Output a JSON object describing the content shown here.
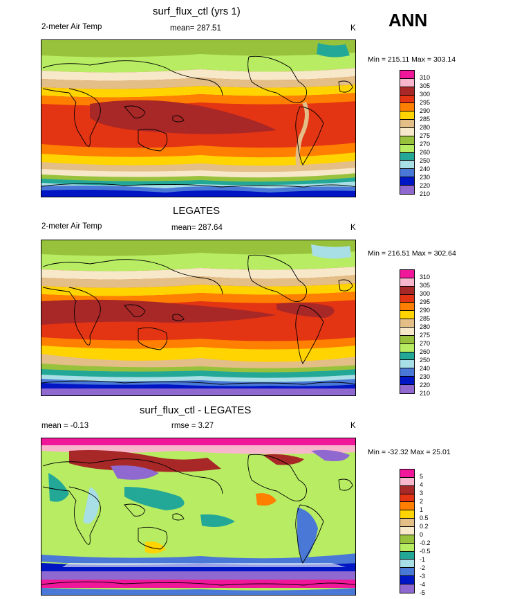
{
  "header": {
    "season": "ANN"
  },
  "panels": [
    {
      "title": "surf_flux_ctl (yrs 1)",
      "left": "2-meter Air Temp",
      "center": "mean= 287.51",
      "units": "K",
      "minmax": "Min = 215.11 Max = 303.14",
      "levels": [
        "310",
        "305",
        "300",
        "295",
        "290",
        "285",
        "280",
        "275",
        "270",
        "260",
        "250",
        "240",
        "230",
        "220",
        "210"
      ],
      "colors": [
        "#f0179a",
        "#f7b6cc",
        "#a82727",
        "#e33413",
        "#ff7f00",
        "#ffd400",
        "#e3be86",
        "#f6e8c8",
        "#99c23c",
        "#b7ec63",
        "#23a898",
        "#a8dfe6",
        "#4a78d6",
        "#0016c4",
        "#8f69cf"
      ]
    },
    {
      "title": "LEGATES",
      "left": "2-meter Air Temp",
      "center": "mean= 287.64",
      "units": "K",
      "minmax": "Min = 216.51 Max = 302.64",
      "levels": [
        "310",
        "305",
        "300",
        "295",
        "290",
        "285",
        "280",
        "275",
        "270",
        "260",
        "250",
        "240",
        "230",
        "220",
        "210"
      ],
      "colors": [
        "#f0179a",
        "#f7b6cc",
        "#a82727",
        "#e33413",
        "#ff7f00",
        "#ffd400",
        "#e3be86",
        "#f6e8c8",
        "#99c23c",
        "#b7ec63",
        "#23a898",
        "#a8dfe6",
        "#4a78d6",
        "#0016c4",
        "#8f69cf"
      ]
    },
    {
      "title": "surf_flux_ctl - LEGATES",
      "left": "mean =  -0.13",
      "center": "rmse =   3.27",
      "units": "K",
      "minmax": "Min = -32.32 Max =  25.01",
      "levels": [
        "5",
        "4",
        "3",
        "2",
        "1",
        "0.5",
        "0.2",
        "0",
        "-0.2",
        "-0.5",
        "-1",
        "-2",
        "-3",
        "-4",
        "-5"
      ],
      "colors": [
        "#f0179a",
        "#f7b6cc",
        "#a82727",
        "#e33413",
        "#ff7f00",
        "#ffd400",
        "#e3be86",
        "#f6e8c8",
        "#99c23c",
        "#b7ec63",
        "#23a898",
        "#a8dfe6",
        "#4a78d6",
        "#0016c4",
        "#8f69cf"
      ]
    }
  ]
}
